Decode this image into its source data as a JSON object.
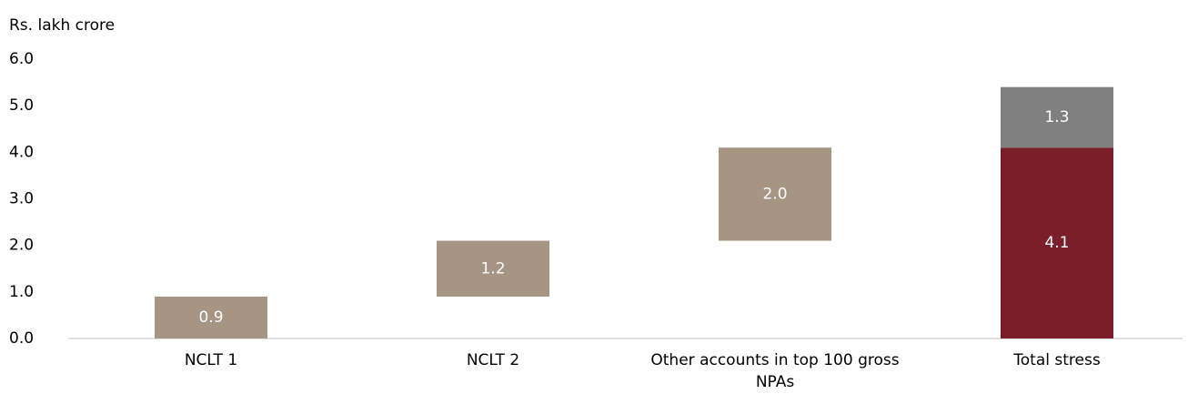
{
  "chart_data": {
    "type": "waterfall",
    "y_axis_label": "Rs. lakh crore",
    "categories": [
      "NCLT 1",
      "NCLT 2",
      "Other accounts in top 100 gross NPAs",
      "Total stress"
    ],
    "values": [
      0.9,
      1.2,
      2.0,
      null
    ],
    "value_labels": [
      "0.9",
      "1.2",
      "2.0",
      null
    ],
    "color": "#a69583",
    "total_segments": {
      "values": [
        4.1,
        1.3
      ],
      "value_labels": [
        "4.1",
        "1.3"
      ],
      "colors": [
        "#7a1e2a",
        "#808080"
      ]
    },
    "ylim": [
      0,
      6
    ],
    "yticks": [
      {
        "value": 0,
        "label": "0.0"
      },
      {
        "value": 1,
        "label": "1.0"
      },
      {
        "value": 2,
        "label": "2.0"
      },
      {
        "value": 3,
        "label": "3.0"
      },
      {
        "value": 4,
        "label": "4.0"
      },
      {
        "value": 5,
        "label": "5.0"
      },
      {
        "value": 6,
        "label": "6.0"
      }
    ],
    "grid": false
  }
}
